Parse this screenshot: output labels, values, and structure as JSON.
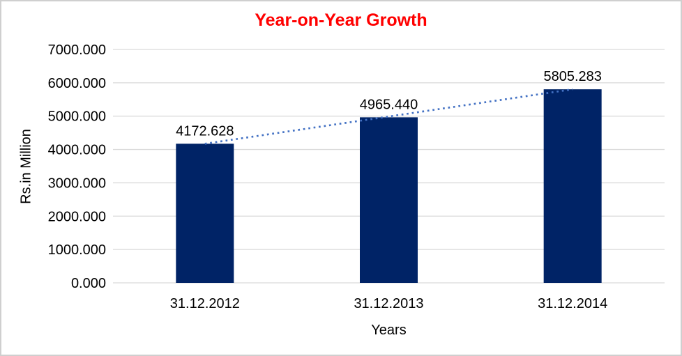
{
  "chart_data": {
    "type": "bar",
    "title": "Year-on-Year Growth",
    "xlabel": "Years",
    "ylabel": "Rs.in Million",
    "categories": [
      "31.12.2012",
      "31.12.2013",
      "31.12.2014"
    ],
    "values": [
      4172.628,
      4965.44,
      5805.283
    ],
    "value_labels": [
      "4172.628",
      "4965.440",
      "5805.283"
    ],
    "ylim": [
      0,
      7000
    ],
    "ytick_step": 1000,
    "ytick_labels": [
      "0.000",
      "1000.000",
      "2000.000",
      "3000.000",
      "4000.000",
      "5000.000",
      "6000.000",
      "7000.000"
    ],
    "grid": "horizontal",
    "legend": "none",
    "trendline": {
      "type": "linear",
      "style": "dotted",
      "from_category": 0,
      "to_category": 2
    },
    "colors": {
      "bar": "#002366",
      "trendline": "#4472C4",
      "gridline": "#D9D9D9",
      "title": "#FF0000",
      "text": "#000000",
      "border": "#CFCFCF",
      "background": "#FFFFFF"
    }
  }
}
